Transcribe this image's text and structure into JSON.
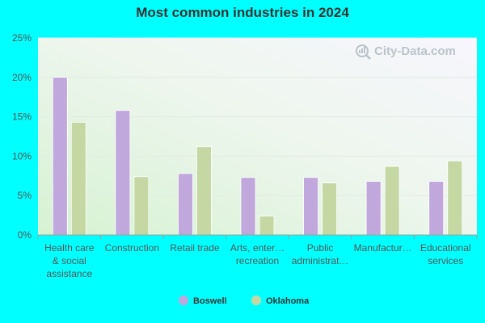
{
  "chart_data": {
    "type": "bar",
    "title": "Most common industries in 2024",
    "categories": [
      [
        "Health care",
        "& social",
        "assistance"
      ],
      [
        "Construction"
      ],
      [
        "Retail trade"
      ],
      [
        "Arts, enter…",
        "recreation"
      ],
      [
        "Public",
        "administrat…"
      ],
      [
        "Manufactur…"
      ],
      [
        "Educational",
        "services"
      ]
    ],
    "series": [
      {
        "name": "Boswell",
        "color": "#c0a8dc",
        "values": [
          20.0,
          15.8,
          7.8,
          7.3,
          7.3,
          6.8,
          6.8
        ]
      },
      {
        "name": "Oklahoma",
        "color": "#c5d8a4",
        "values": [
          14.3,
          7.4,
          11.2,
          2.4,
          6.6,
          8.7,
          9.4
        ]
      }
    ],
    "ylim": [
      0,
      25
    ],
    "yticks": [
      "0%",
      "5%",
      "10%",
      "15%",
      "20%",
      "25%"
    ],
    "ytick_values": [
      0,
      5,
      10,
      15,
      20,
      25
    ],
    "grid": true,
    "legend": "bottom-center",
    "watermark": "City-Data.com"
  }
}
